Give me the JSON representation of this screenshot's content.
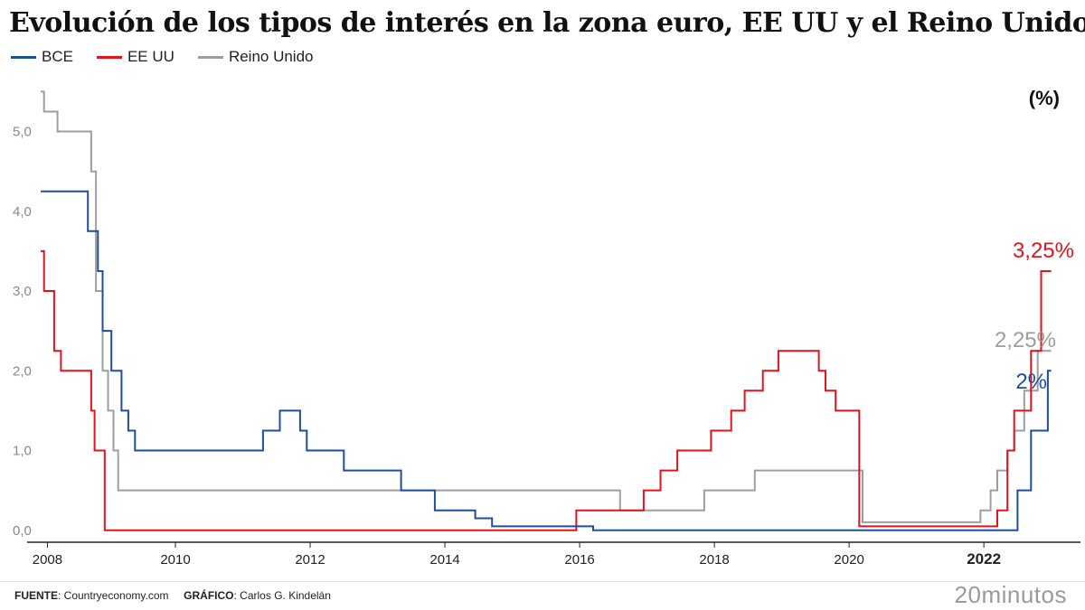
{
  "chart_data": {
    "type": "line",
    "title": "Evolución de los tipos de interés en la zona euro, EE UU y el Reino Unido",
    "unit_label": "(%)",
    "ylim": [
      -0.15,
      5.55
    ],
    "xlim": [
      2008,
      2023.3
    ],
    "y_ticks": [
      {
        "value": 0,
        "label": "0,0"
      },
      {
        "value": 1,
        "label": "1,0"
      },
      {
        "value": 2,
        "label": "2,0"
      },
      {
        "value": 3,
        "label": "3,0"
      },
      {
        "value": 4,
        "label": "4,0"
      },
      {
        "value": 5,
        "label": "5,0"
      }
    ],
    "x_ticks": [
      {
        "value": 2008.1,
        "label": "2008",
        "bold": false
      },
      {
        "value": 2010,
        "label": "2010",
        "bold": false
      },
      {
        "value": 2012,
        "label": "2012",
        "bold": false
      },
      {
        "value": 2014,
        "label": "2014",
        "bold": false
      },
      {
        "value": 2016,
        "label": "2016",
        "bold": false
      },
      {
        "value": 2018,
        "label": "2018",
        "bold": false
      },
      {
        "value": 2020,
        "label": "2020",
        "bold": false
      },
      {
        "value": 2022,
        "label": "2022",
        "bold": true
      }
    ],
    "grid": false,
    "legend_position": "top-left",
    "series": [
      {
        "name": "BCE",
        "color": "#1f4e9c",
        "end_label": "2%",
        "points": [
          [
            2008.0,
            4.25
          ],
          [
            2008.7,
            3.75
          ],
          [
            2008.85,
            3.25
          ],
          [
            2008.92,
            2.5
          ],
          [
            2009.05,
            2.0
          ],
          [
            2009.2,
            1.5
          ],
          [
            2009.3,
            1.25
          ],
          [
            2009.4,
            1.0
          ],
          [
            2011.3,
            1.25
          ],
          [
            2011.55,
            1.5
          ],
          [
            2011.85,
            1.25
          ],
          [
            2011.95,
            1.0
          ],
          [
            2012.5,
            0.75
          ],
          [
            2013.35,
            0.5
          ],
          [
            2013.85,
            0.25
          ],
          [
            2014.45,
            0.15
          ],
          [
            2014.7,
            0.05
          ],
          [
            2016.2,
            0.0
          ],
          [
            2022.5,
            0.5
          ],
          [
            2022.7,
            1.25
          ],
          [
            2022.95,
            2.0
          ],
          [
            2023.0,
            2.0
          ]
        ]
      },
      {
        "name": "EE UU",
        "color": "#e3131b",
        "end_label": "3,25%",
        "points": [
          [
            2008.0,
            3.5
          ],
          [
            2008.05,
            3.0
          ],
          [
            2008.2,
            2.25
          ],
          [
            2008.3,
            2.0
          ],
          [
            2008.75,
            1.5
          ],
          [
            2008.8,
            1.0
          ],
          [
            2008.95,
            0.0
          ],
          [
            2015.95,
            0.25
          ],
          [
            2016.95,
            0.5
          ],
          [
            2017.2,
            0.75
          ],
          [
            2017.45,
            1.0
          ],
          [
            2017.95,
            1.25
          ],
          [
            2018.25,
            1.5
          ],
          [
            2018.45,
            1.75
          ],
          [
            2018.72,
            2.0
          ],
          [
            2018.95,
            2.25
          ],
          [
            2019.55,
            2.0
          ],
          [
            2019.65,
            1.75
          ],
          [
            2019.8,
            1.5
          ],
          [
            2020.15,
            0.05
          ],
          [
            2022.2,
            0.25
          ],
          [
            2022.35,
            1.0
          ],
          [
            2022.45,
            1.5
          ],
          [
            2022.7,
            2.25
          ],
          [
            2022.85,
            3.25
          ],
          [
            2023.0,
            3.25
          ]
        ]
      },
      {
        "name": "Reino Unido",
        "color": "#9e9e9e",
        "end_label": "2,25%",
        "points": [
          [
            2008.0,
            5.5
          ],
          [
            2008.05,
            5.25
          ],
          [
            2008.25,
            5.0
          ],
          [
            2008.75,
            4.5
          ],
          [
            2008.82,
            3.0
          ],
          [
            2008.92,
            2.0
          ],
          [
            2009.0,
            1.5
          ],
          [
            2009.08,
            1.0
          ],
          [
            2009.15,
            0.5
          ],
          [
            2016.6,
            0.25
          ],
          [
            2017.85,
            0.5
          ],
          [
            2018.6,
            0.75
          ],
          [
            2020.2,
            0.1
          ],
          [
            2021.95,
            0.25
          ],
          [
            2022.1,
            0.5
          ],
          [
            2022.2,
            0.75
          ],
          [
            2022.35,
            1.0
          ],
          [
            2022.45,
            1.25
          ],
          [
            2022.6,
            1.75
          ],
          [
            2022.8,
            2.25
          ],
          [
            2023.0,
            2.25
          ]
        ]
      }
    ]
  },
  "footer": {
    "source_label": "FUENTE",
    "source_value": ": Countryeconomy.com",
    "graphic_label": "GRÁFICO",
    "graphic_value": ": Carlos G. Kindelán",
    "brand": "20minutos"
  }
}
